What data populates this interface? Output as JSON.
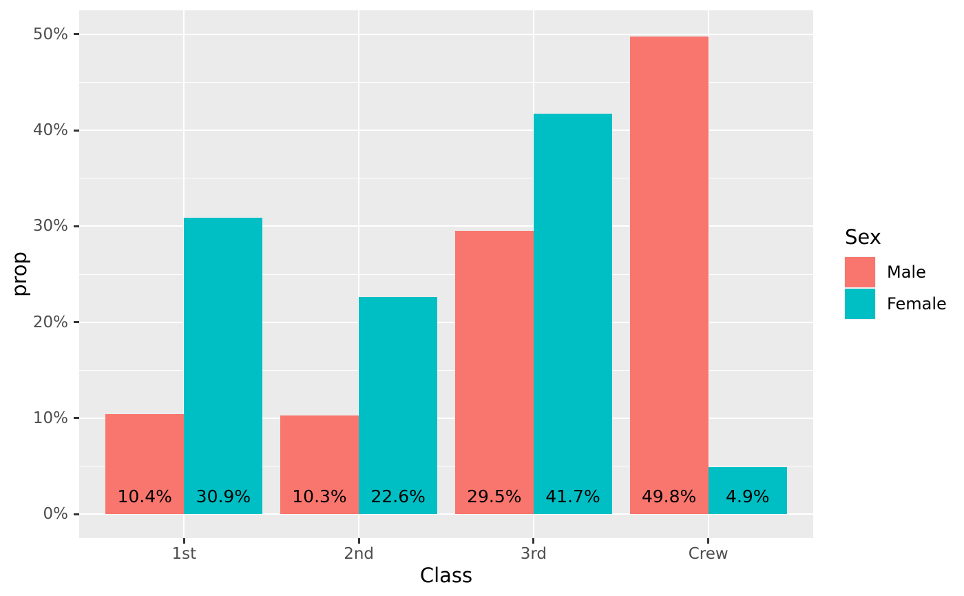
{
  "chart_data": {
    "type": "bar",
    "title": "",
    "xlabel": "Class",
    "ylabel": "prop",
    "categories": [
      "1st",
      "2nd",
      "3rd",
      "Crew"
    ],
    "series": [
      {
        "name": "Male",
        "color": "#F8766D",
        "values": [
          10.4,
          10.3,
          29.5,
          49.8
        ],
        "labels": [
          "10.4%",
          "10.3%",
          "29.5%",
          "49.8%"
        ]
      },
      {
        "name": "Female",
        "color": "#00BFC4",
        "values": [
          30.9,
          22.6,
          41.7,
          4.9
        ],
        "labels": [
          "30.9%",
          "22.6%",
          "41.7%",
          "4.9%"
        ]
      }
    ],
    "y_ticks": [
      {
        "value": 0,
        "label": "0%"
      },
      {
        "value": 10,
        "label": "10%"
      },
      {
        "value": 20,
        "label": "20%"
      },
      {
        "value": 30,
        "label": "30%"
      },
      {
        "value": 40,
        "label": "40%"
      },
      {
        "value": 50,
        "label": "50%"
      }
    ],
    "y_minor_ticks": [
      5,
      15,
      25,
      35,
      45
    ],
    "ylim": [
      0,
      50
    ],
    "grid": true,
    "legend": {
      "title": "Sex",
      "position": "right"
    }
  },
  "style": {
    "panel_background": "#EBEBEB",
    "gridline_color": "#FFFFFF",
    "tick_mark_color": "#333333",
    "axis_text_color": "#4D4D4D",
    "axis_title_color": "#000000",
    "bar_label_color": "#000000",
    "male_color": "#F8766D",
    "female_color": "#00BFC4"
  }
}
